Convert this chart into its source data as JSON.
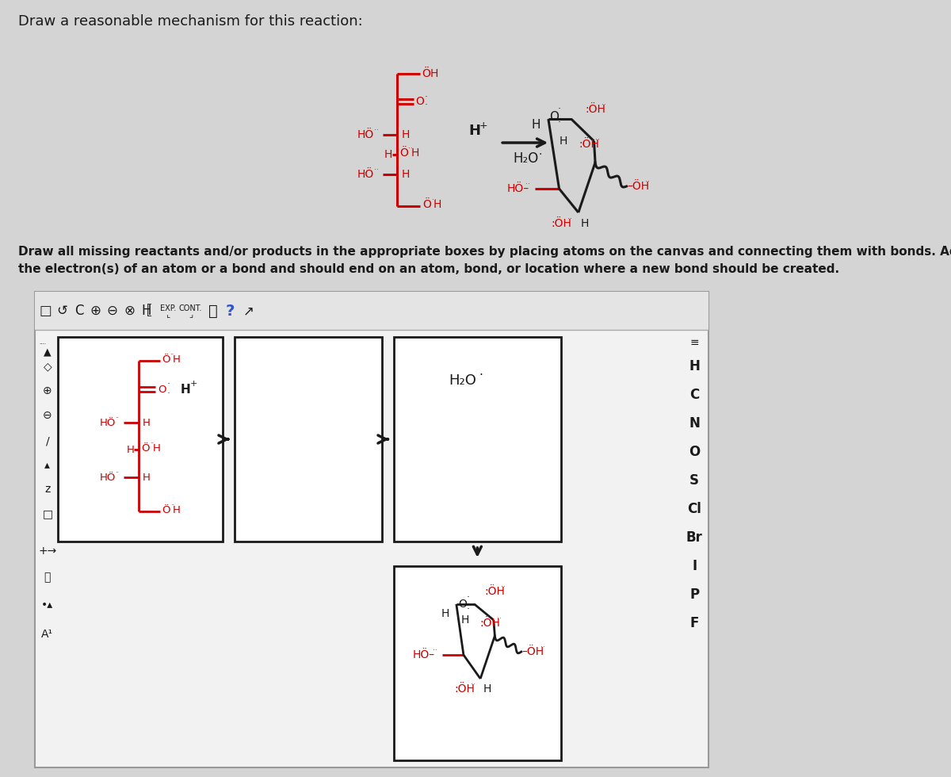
{
  "bg_color": "#d4d4d4",
  "white": "#ffffff",
  "red": "#cc0000",
  "black": "#1a1a1a",
  "dark_gray": "#333333",
  "light_gray": "#e8e8e8",
  "mid_gray": "#cccccc",
  "title": "Draw a reasonable mechanism for this reaction:",
  "instruction_line1": "Draw all missing reactants and/or products in the appropriate boxes by placing atoms on the canvas and connecting them with bonds. Add",
  "instruction_line2": "the electron(s) of an atom or a bond and should end on an atom, bond, or location where a new bond should be created.",
  "element_sidebar": [
    "H",
    "C",
    "N",
    "O",
    "S",
    "Cl",
    "Br",
    "I",
    "P",
    "F"
  ],
  "toolbar_symbols": [
    "□",
    "↺",
    "C",
    "⊕",
    "⊖",
    "⊗",
    "H",
    "EXP.",
    "CONT.",
    "ⓘ",
    "?",
    "↗"
  ]
}
